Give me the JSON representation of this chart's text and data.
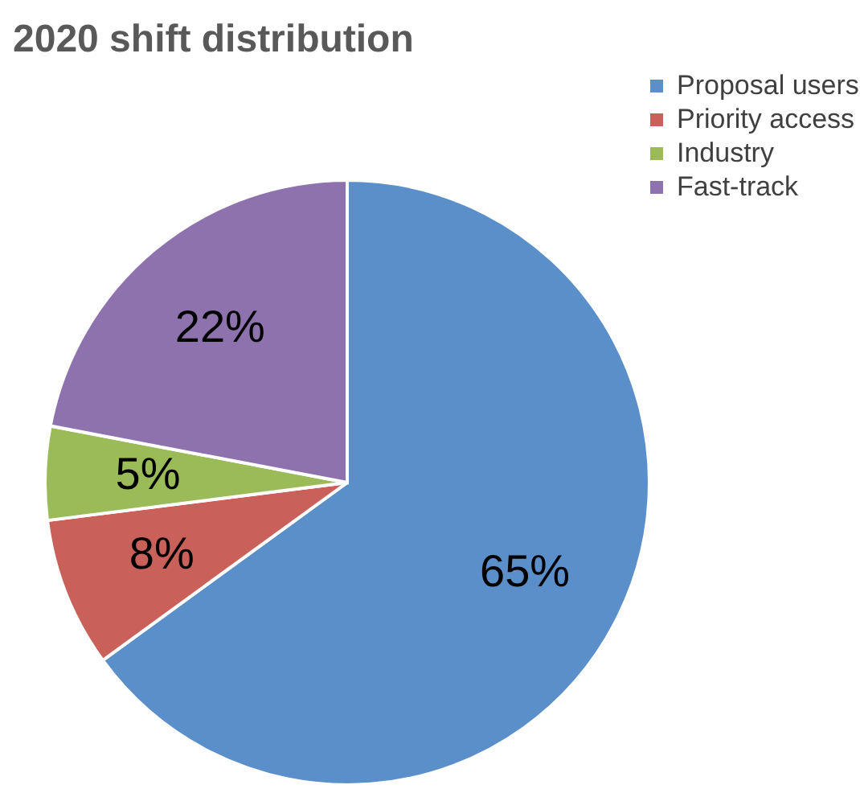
{
  "chart_data": {
    "type": "pie",
    "title": "2020 shift distribution",
    "categories": [
      "Proposal users",
      "Priority access",
      "Industry",
      "Fast-track"
    ],
    "values": [
      65,
      8,
      5,
      22
    ],
    "colors": [
      "#5b8fc9",
      "#c9605a",
      "#9bbb59",
      "#8e72ad"
    ],
    "value_labels": [
      "65%",
      "8%",
      "5%",
      "22%"
    ],
    "legend": "top right"
  }
}
